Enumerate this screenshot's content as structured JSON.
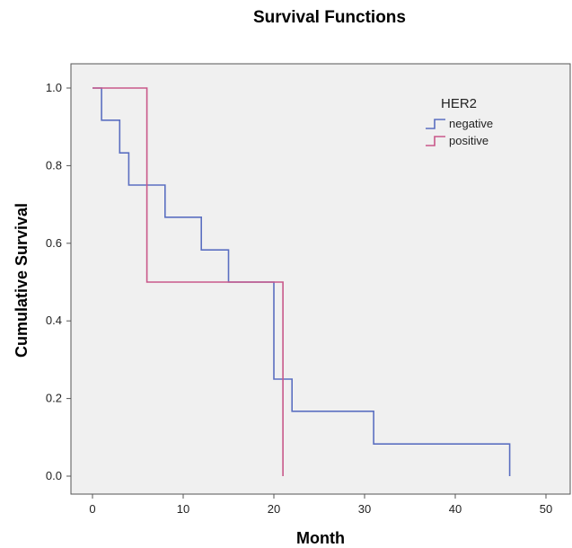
{
  "chart_data": {
    "type": "line",
    "subtype": "step",
    "title": "Survival Functions",
    "xlabel": "Month",
    "ylabel": "Cumulative Survival",
    "xlim": [
      0,
      50
    ],
    "ylim": [
      0,
      1.0
    ],
    "xticks": [
      "0",
      "10",
      "20",
      "30",
      "40",
      "50"
    ],
    "yticks": [
      "0.0",
      "0.2",
      "0.4",
      "0.6",
      "0.8",
      "1.0"
    ],
    "grid": false,
    "background": "#f0f0f0",
    "legend": {
      "title": "HER2",
      "placement": "top-right"
    },
    "series": [
      {
        "name": "negative",
        "color": "#5b6fc1",
        "x": [
          0,
          1,
          3,
          4,
          8,
          12,
          15,
          20,
          22,
          31,
          46
        ],
        "y": [
          1.0,
          0.917,
          0.833,
          0.75,
          0.667,
          0.583,
          0.5,
          0.25,
          0.167,
          0.083,
          0.0
        ]
      },
      {
        "name": "positive",
        "color": "#c9588a",
        "x": [
          0,
          6,
          21
        ],
        "y": [
          1.0,
          0.5,
          0.0
        ]
      }
    ]
  }
}
